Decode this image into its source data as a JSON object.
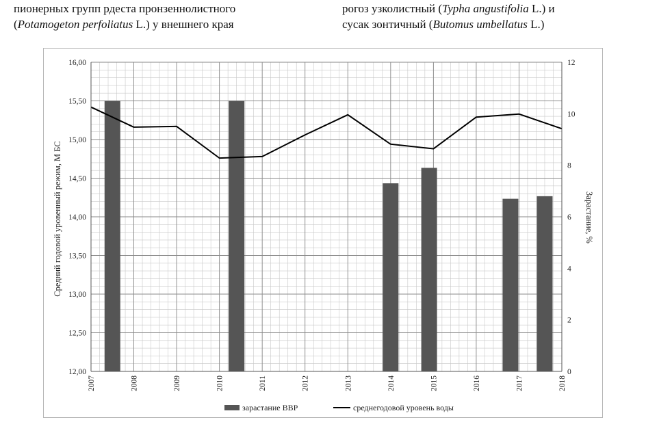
{
  "body_text": {
    "left_line1": "пионерных групп рдеста пронзеннолистного",
    "left_line2_pre": "(",
    "left_line2_italic": "Potamogeton perfoliatus",
    "left_line2_post": " L.) у внешнего края",
    "right_line1_pre": "рогоз узколистный (",
    "right_line1_italic": "Typha angustifolia",
    "right_line1_post": " L.) и",
    "right_line2_pre": "сусак зонтичный (",
    "right_line2_italic": "Butomus umbellatus",
    "right_line2_post": " L.)"
  },
  "chart_data": {
    "type": "bar+line",
    "x_ticks": [
      "2007",
      "2008",
      "2009",
      "2010",
      "2011",
      "2012",
      "2013",
      "2014",
      "2015",
      "2016",
      "2017",
      "2018"
    ],
    "ylabel_left": "Средний годовой уровенный режим, М БС",
    "ylabel_right": "Зарастание, %",
    "y_left_ticks": [
      "16,00",
      "15,50",
      "15,00",
      "14,50",
      "14,00",
      "13,50",
      "13,00",
      "12,50",
      "12,00"
    ],
    "y_left_range": [
      12.0,
      16.0
    ],
    "y_right_ticks": [
      "12",
      "10",
      "8",
      "6",
      "4",
      "2",
      "0"
    ],
    "y_right_range": [
      0,
      12
    ],
    "bars": {
      "name": "зарастание ВВР",
      "color": "#555555",
      "points": [
        {
          "x": 2007.5,
          "y": 10.5
        },
        {
          "x": 2010.4,
          "y": 10.5
        },
        {
          "x": 2014.0,
          "y": 7.3
        },
        {
          "x": 2014.9,
          "y": 7.9
        },
        {
          "x": 2016.8,
          "y": 6.7
        },
        {
          "x": 2017.6,
          "y": 6.8
        }
      ]
    },
    "line": {
      "name": "среднегодовой уровень воды",
      "color": "#000000",
      "points": [
        {
          "x": 2007.0,
          "y": 15.42
        },
        {
          "x": 2008.0,
          "y": 15.16
        },
        {
          "x": 2009.0,
          "y": 15.17
        },
        {
          "x": 2010.0,
          "y": 14.76
        },
        {
          "x": 2011.0,
          "y": 14.78
        },
        {
          "x": 2012.0,
          "y": 15.06
        },
        {
          "x": 2013.0,
          "y": 15.32
        },
        {
          "x": 2014.0,
          "y": 14.94
        },
        {
          "x": 2015.0,
          "y": 14.88
        },
        {
          "x": 2016.0,
          "y": 15.29
        },
        {
          "x": 2017.0,
          "y": 15.33
        },
        {
          "x": 2018.0,
          "y": 15.14
        }
      ]
    },
    "grid": true,
    "legend_position": "bottom"
  }
}
